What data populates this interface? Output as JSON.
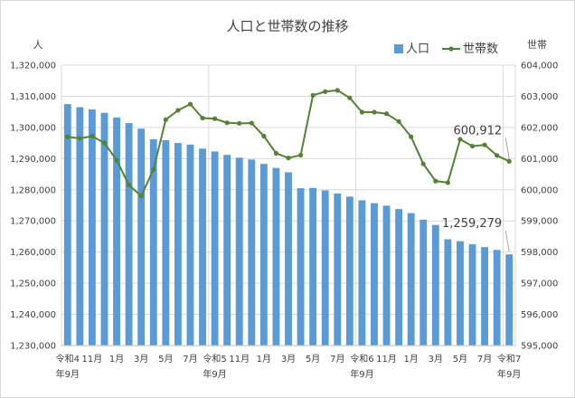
{
  "chart_data": {
    "type": "bar+line",
    "title": "人口と世帯数の推移",
    "left_axis_unit": "人",
    "right_axis_unit": "世帯",
    "ylim_left": [
      1230000,
      1320000
    ],
    "ylim_right": [
      595000,
      604000
    ],
    "yticks_left": [
      "1,230,000",
      "1,240,000",
      "1,250,000",
      "1,260,000",
      "1,270,000",
      "1,280,000",
      "1,290,000",
      "1,300,000",
      "1,310,000",
      "1,320,000"
    ],
    "yticks_right": [
      "595,000",
      "596,000",
      "597,000",
      "598,000",
      "599,000",
      "600,000",
      "601,000",
      "602,000",
      "603,000",
      "604,000"
    ],
    "xtick_labels": [
      {
        "index": 0,
        "line1": "令和4",
        "line2": "年9月"
      },
      {
        "index": 2,
        "line1": "11月",
        "line2": ""
      },
      {
        "index": 4,
        "line1": "1月",
        "line2": ""
      },
      {
        "index": 6,
        "line1": "3月",
        "line2": ""
      },
      {
        "index": 8,
        "line1": "5月",
        "line2": ""
      },
      {
        "index": 10,
        "line1": "7月",
        "line2": ""
      },
      {
        "index": 12,
        "line1": "令和5",
        "line2": "年9月"
      },
      {
        "index": 14,
        "line1": "11月",
        "line2": ""
      },
      {
        "index": 16,
        "line1": "1月",
        "line2": ""
      },
      {
        "index": 18,
        "line1": "3月",
        "line2": ""
      },
      {
        "index": 20,
        "line1": "5月",
        "line2": ""
      },
      {
        "index": 22,
        "line1": "7月",
        "line2": ""
      },
      {
        "index": 24,
        "line1": "令和6",
        "line2": "年9月"
      },
      {
        "index": 26,
        "line1": "11月",
        "line2": ""
      },
      {
        "index": 28,
        "line1": "1月",
        "line2": ""
      },
      {
        "index": 30,
        "line1": "3月",
        "line2": ""
      },
      {
        "index": 32,
        "line1": "5月",
        "line2": ""
      },
      {
        "index": 34,
        "line1": "7月",
        "line2": ""
      },
      {
        "index": 36,
        "line1": "令和7",
        "line2": "年9月"
      }
    ],
    "series": [
      {
        "name": "人口",
        "type": "bar",
        "axis": "left",
        "color": "#5b9bd5",
        "values": [
          1307500,
          1306500,
          1305800,
          1304700,
          1303200,
          1301400,
          1299600,
          1296200,
          1295900,
          1295000,
          1294500,
          1293200,
          1292300,
          1291200,
          1290300,
          1289700,
          1288300,
          1287000,
          1285600,
          1280500,
          1280600,
          1279800,
          1278800,
          1277800,
          1276600,
          1275700,
          1274900,
          1273800,
          1272500,
          1270400,
          1268700,
          1264100,
          1263500,
          1262500,
          1261600,
          1260700,
          1259279
        ]
      },
      {
        "name": "世帯数",
        "type": "line",
        "axis": "right",
        "color": "#548235",
        "values": [
          601700,
          601650,
          601720,
          601500,
          600950,
          600150,
          599800,
          600650,
          602250,
          602550,
          602750,
          602300,
          602280,
          602150,
          602130,
          602140,
          601720,
          601170,
          601020,
          601110,
          603030,
          603150,
          603190,
          602950,
          602490,
          602490,
          602440,
          602190,
          601700,
          600830,
          600280,
          600230,
          601620,
          601400,
          601440,
          601100,
          600912
        ]
      }
    ],
    "callouts": [
      {
        "series": "世帯数",
        "index": 36,
        "label": "600,912"
      },
      {
        "series": "人口",
        "index": 36,
        "label": "1,259,279"
      }
    ],
    "legend_position": "top-right",
    "grid": "horizontal + vertical at fiscal year starts"
  }
}
